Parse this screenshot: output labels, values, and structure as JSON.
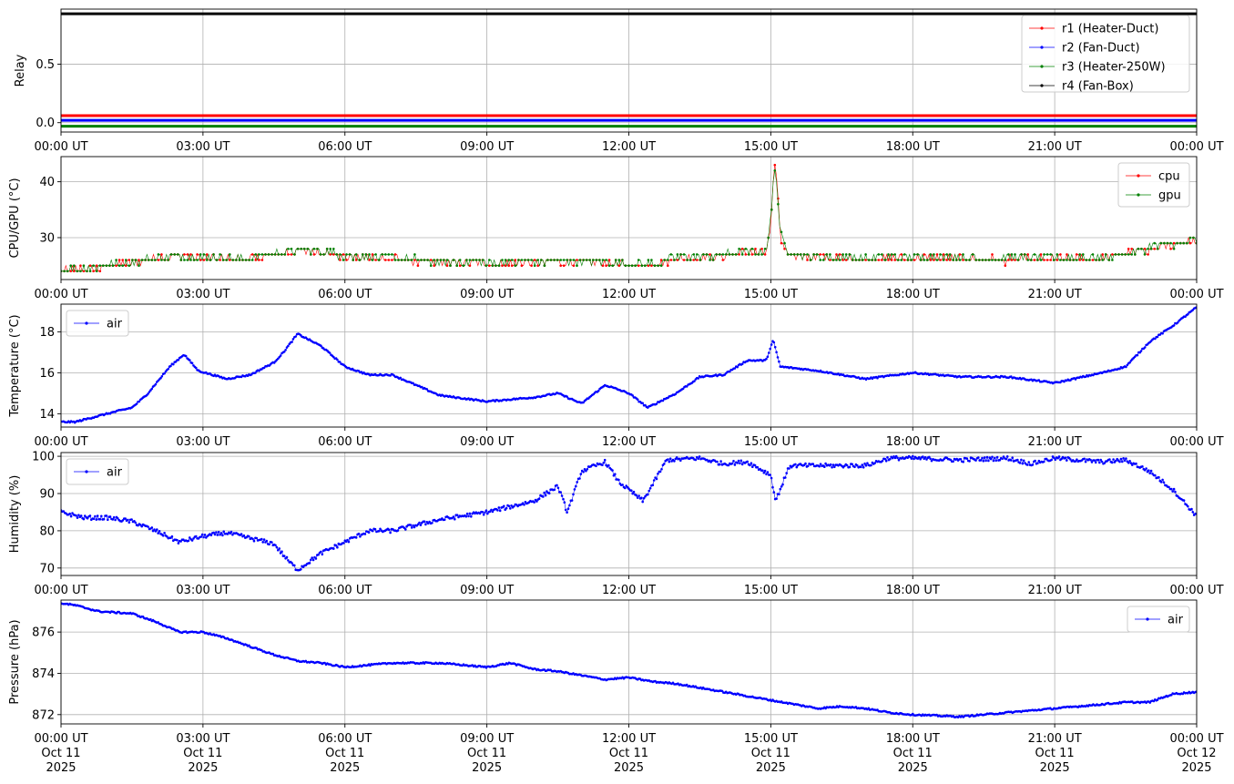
{
  "x_tick_labels": [
    "00:00 UT",
    "03:00 UT",
    "06:00 UT",
    "09:00 UT",
    "12:00 UT",
    "15:00 UT",
    "18:00 UT",
    "21:00 UT",
    "00:00 UT"
  ],
  "x_tick_dates": [
    [
      "Oct 11",
      "2025"
    ],
    [
      "Oct 11",
      "2025"
    ],
    [
      "Oct 11",
      "2025"
    ],
    [
      "Oct 11",
      "2025"
    ],
    [
      "Oct 11",
      "2025"
    ],
    [
      "Oct 11",
      "2025"
    ],
    [
      "Oct 11",
      "2025"
    ],
    [
      "Oct 11",
      "2025"
    ],
    [
      "Oct 12",
      "2025"
    ]
  ],
  "chart_data": [
    {
      "type": "line",
      "ylabel": "Relay",
      "xlim_hours": [
        0,
        24
      ],
      "ylim": [
        -0.08,
        0.97
      ],
      "yticks": [
        0.0,
        0.5
      ],
      "ytick_labels": [
        "0.0",
        "0.5"
      ],
      "grid": true,
      "legend_position": "top-right",
      "series": [
        {
          "name": "r1 (Heater-Duct)",
          "color": "#ff0000",
          "x": [
            0,
            24
          ],
          "y": [
            0.06,
            0.06
          ]
        },
        {
          "name": "r2 (Fan-Duct)",
          "color": "#0000ff",
          "x": [
            0,
            24
          ],
          "y": [
            0.02,
            0.02
          ]
        },
        {
          "name": "r3 (Heater-250W)",
          "color": "#008000",
          "x": [
            0,
            24
          ],
          "y": [
            -0.03,
            -0.03
          ]
        },
        {
          "name": "r4 (Fan-Box)",
          "color": "#000000",
          "x": [
            0,
            24
          ],
          "y": [
            0.93,
            0.93
          ]
        }
      ]
    },
    {
      "type": "scatter",
      "ylabel": "CPU/GPU (°C)",
      "xlim_hours": [
        0,
        24
      ],
      "ylim": [
        22.5,
        44.5
      ],
      "yticks": [
        30,
        40
      ],
      "ytick_labels": [
        "30",
        "40"
      ],
      "grid": true,
      "legend_position": "top-right",
      "series": [
        {
          "name": "cpu",
          "color": "#ff0000",
          "x": [
            0,
            0.5,
            1.0,
            1.5,
            2.0,
            2.5,
            3.0,
            3.5,
            4.0,
            4.5,
            5.0,
            5.5,
            6.0,
            7.0,
            8.0,
            9.0,
            10.0,
            11.0,
            12.0,
            12.5,
            13.0,
            13.5,
            14.0,
            14.5,
            14.9,
            15.0,
            15.05,
            15.1,
            15.2,
            15.4,
            16.0,
            17.0,
            18.0,
            19.0,
            20.0,
            21.0,
            22.0,
            22.5,
            23.0,
            23.5,
            24.0
          ],
          "y": [
            24,
            24.3,
            24.8,
            25.5,
            26.2,
            26.8,
            26.3,
            26.1,
            26.2,
            26.8,
            27.8,
            27.5,
            26.6,
            26.2,
            25.5,
            25.3,
            25.5,
            25.8,
            25.1,
            25.0,
            26.2,
            26.5,
            26.7,
            27.5,
            27.4,
            32,
            39,
            44,
            30,
            27,
            26.4,
            26.1,
            26.3,
            26.2,
            26.0,
            26.1,
            26.3,
            27.0,
            28.0,
            28.8,
            29.3
          ]
        },
        {
          "name": "gpu",
          "color": "#008000",
          "x": [
            0,
            0.5,
            1.0,
            1.5,
            2.0,
            2.5,
            3.0,
            3.5,
            4.0,
            4.5,
            5.0,
            5.5,
            6.0,
            7.0,
            8.0,
            9.0,
            10.0,
            11.0,
            12.0,
            12.5,
            13.0,
            13.5,
            14.0,
            14.5,
            14.9,
            15.0,
            15.05,
            15.1,
            15.2,
            15.4,
            16.0,
            17.0,
            18.0,
            19.0,
            20.0,
            21.0,
            22.0,
            22.5,
            23.0,
            23.5,
            24.0
          ],
          "y": [
            24.2,
            24.5,
            25.0,
            25.7,
            26.4,
            27.0,
            26.5,
            26.3,
            26.4,
            27.0,
            28.0,
            27.6,
            26.8,
            26.4,
            25.7,
            25.5,
            25.7,
            26.0,
            25.3,
            25.2,
            26.4,
            26.7,
            26.9,
            27.7,
            27.6,
            33,
            40,
            43.5,
            30.5,
            27.2,
            26.6,
            26.3,
            26.5,
            26.4,
            26.2,
            26.3,
            26.5,
            27.2,
            28.2,
            29.0,
            29.5
          ]
        }
      ]
    },
    {
      "type": "scatter",
      "ylabel": "Temperature (°C)",
      "xlim_hours": [
        0,
        24
      ],
      "ylim": [
        13.35,
        19.35
      ],
      "yticks": [
        14,
        16,
        18
      ],
      "ytick_labels": [
        "14",
        "16",
        "18"
      ],
      "grid": true,
      "legend_position": "top-left",
      "series": [
        {
          "name": "air",
          "color": "#0000ff",
          "x": [
            0,
            0.3,
            0.8,
            1.5,
            1.8,
            2.3,
            2.6,
            2.9,
            3.5,
            4.0,
            4.5,
            4.7,
            5.0,
            5.5,
            6.0,
            6.5,
            7.0,
            8.0,
            9.0,
            10.0,
            10.5,
            11.0,
            11.5,
            12.0,
            12.4,
            13.0,
            13.5,
            14.0,
            14.5,
            14.9,
            15.05,
            15.2,
            16.0,
            17.0,
            18.0,
            19.0,
            20.0,
            21.0,
            22.0,
            22.5,
            23.0,
            23.5,
            24.0
          ],
          "y": [
            13.6,
            13.6,
            13.9,
            14.3,
            14.9,
            16.3,
            16.9,
            16.1,
            15.7,
            15.9,
            16.5,
            17.0,
            17.9,
            17.3,
            16.3,
            15.9,
            15.9,
            14.9,
            14.6,
            14.8,
            15.0,
            14.5,
            15.4,
            15.0,
            14.3,
            15.0,
            15.8,
            15.9,
            16.6,
            16.6,
            17.6,
            16.3,
            16.1,
            15.7,
            16.0,
            15.8,
            15.8,
            15.5,
            16.0,
            16.3,
            17.5,
            18.3,
            19.2
          ]
        }
      ]
    },
    {
      "type": "scatter",
      "ylabel": "Humidity (%)",
      "xlim_hours": [
        0,
        24
      ],
      "ylim": [
        68,
        101
      ],
      "yticks": [
        70,
        80,
        90,
        100
      ],
      "ytick_labels": [
        "70",
        "80",
        "90",
        "100"
      ],
      "grid": true,
      "legend_position": "top-left",
      "series": [
        {
          "name": "air",
          "color": "#0000ff",
          "x": [
            0,
            0.5,
            1.0,
            1.5,
            2.0,
            2.5,
            3.0,
            3.5,
            4.0,
            4.5,
            4.8,
            5.0,
            5.5,
            6.0,
            6.5,
            7.0,
            8.0,
            9.0,
            10.0,
            10.5,
            10.7,
            11.0,
            11.5,
            11.8,
            12.3,
            12.8,
            13.5,
            14.0,
            14.5,
            15.0,
            15.1,
            15.4,
            16.0,
            17.0,
            17.5,
            18.0,
            19.0,
            20.0,
            20.5,
            21.0,
            22.0,
            22.5,
            23.0,
            23.5,
            24.0
          ],
          "y": [
            85,
            83.5,
            83.5,
            82.5,
            80,
            77,
            78.5,
            79.5,
            78,
            76.5,
            72,
            69.5,
            74,
            77,
            80,
            80,
            83,
            85,
            88,
            92,
            85,
            96,
            98.5,
            93,
            88,
            99,
            99.5,
            98,
            98.5,
            95,
            88,
            97.5,
            97.5,
            97.5,
            99.5,
            99.5,
            99,
            99.5,
            98,
            99.5,
            98.5,
            99,
            96,
            91,
            84
          ]
        }
      ]
    },
    {
      "type": "scatter",
      "ylabel": "Pressure (hPa)",
      "xlim_hours": [
        0,
        24
      ],
      "ylim": [
        871.55,
        877.55
      ],
      "yticks": [
        872,
        874,
        876
      ],
      "ytick_labels": [
        "872",
        "874",
        "876"
      ],
      "grid": true,
      "legend_position": "top-right",
      "series": [
        {
          "name": "air",
          "color": "#0000ff",
          "x": [
            0,
            0.3,
            0.8,
            1.5,
            2.0,
            2.5,
            3.0,
            3.5,
            4.0,
            4.5,
            5.0,
            5.5,
            6.0,
            7.0,
            8.0,
            9.0,
            9.5,
            10.0,
            10.5,
            11.0,
            11.5,
            12.0,
            12.5,
            13.0,
            14.0,
            15.0,
            16.0,
            16.5,
            17.0,
            17.5,
            18.0,
            18.5,
            19.0,
            19.5,
            20.0,
            21.0,
            22.0,
            22.5,
            23.0,
            23.5,
            24.0
          ],
          "y": [
            877.4,
            877.3,
            877.0,
            876.9,
            876.5,
            876.0,
            876.0,
            875.7,
            875.3,
            874.9,
            874.6,
            874.5,
            874.3,
            874.5,
            874.5,
            874.3,
            874.5,
            874.2,
            874.1,
            873.9,
            873.7,
            873.8,
            873.6,
            873.5,
            873.1,
            872.7,
            872.3,
            872.4,
            872.3,
            872.1,
            872.0,
            871.95,
            871.9,
            872.0,
            872.1,
            872.3,
            872.5,
            872.6,
            872.6,
            873.0,
            873.1
          ]
        }
      ]
    }
  ]
}
